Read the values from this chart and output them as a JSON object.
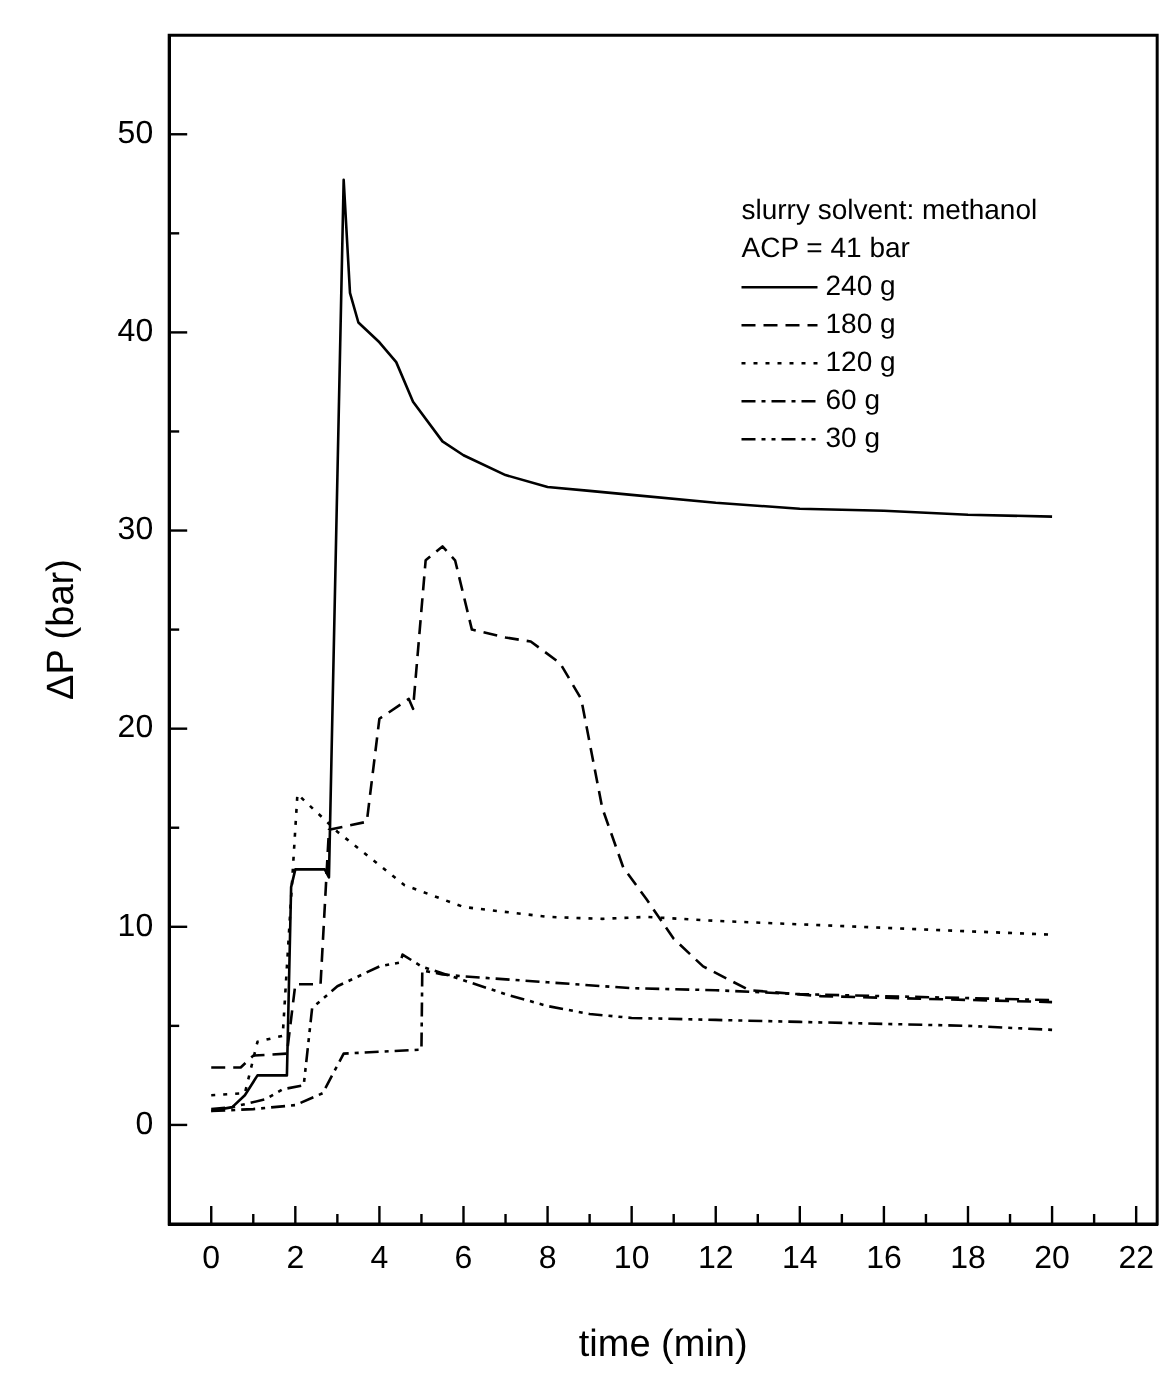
{
  "chart_data": {
    "type": "line",
    "xlabel": "time (min)",
    "ylabel": "ΔP (bar)",
    "xlim": [
      -1,
      22.5
    ],
    "ylim": [
      -5,
      55
    ],
    "xticks": [
      0,
      {
        "value": 1,
        "label": null
      },
      2,
      {
        "value": 3,
        "label": null
      },
      4,
      {
        "value": 5,
        "label": null
      },
      6,
      {
        "value": 7,
        "label": null
      },
      8,
      {
        "value": 9,
        "label": null
      },
      10,
      {
        "value": 11,
        "label": null
      },
      12,
      {
        "value": 13,
        "label": null
      },
      14,
      {
        "value": 15,
        "label": null
      },
      16,
      {
        "value": 17,
        "label": null
      },
      18,
      {
        "value": 19,
        "label": null
      },
      20,
      {
        "value": 21,
        "label": null
      },
      22
    ],
    "yticks": [
      0,
      {
        "value": 5,
        "label": null
      },
      10,
      {
        "value": 15,
        "label": null
      },
      20,
      {
        "value": 25,
        "label": null
      },
      30,
      {
        "value": 35,
        "label": null
      },
      40,
      {
        "value": 45,
        "label": null
      },
      50
    ],
    "grid": false,
    "legend": "top right",
    "marker": "none",
    "annotations": [
      "slurry solvent: methanol",
      "ACP = 41 bar"
    ],
    "series": [
      {
        "name": "240 g",
        "color": "#000000",
        "line_style": "solid",
        "x": [
          0,
          0.5,
          0.8,
          1.1,
          1.8,
          1.9,
          2,
          2.7,
          2.8,
          3.15,
          3.3,
          3.5,
          4,
          4.4,
          4.8,
          5.5,
          6,
          7,
          8,
          9,
          10,
          12,
          14,
          16,
          18,
          20
        ],
        "values": [
          0.7,
          0.9,
          1.5,
          2.5,
          2.5,
          12,
          12.9,
          12.9,
          12.5,
          47.7,
          42,
          40.5,
          39.5,
          38.5,
          36.5,
          34.5,
          33.8,
          32.8,
          32.2,
          32,
          31.8,
          31.4,
          31.1,
          31,
          30.8,
          30.7
        ]
      },
      {
        "name": "180 g",
        "color": "#000000",
        "line_style": "dashed",
        "x": [
          0,
          0.7,
          1,
          1.8,
          2,
          2.6,
          2.8,
          3.7,
          4,
          4.7,
          4.8,
          5.1,
          5.5,
          5.8,
          6.2,
          7,
          7.6,
          8.3,
          8.8,
          9.3,
          9.8,
          10.35,
          11,
          11.7,
          12.8,
          14.5,
          20
        ],
        "values": [
          2.9,
          2.9,
          3.5,
          3.6,
          7.1,
          7.1,
          14.9,
          15.3,
          20.5,
          21.5,
          21,
          28.5,
          29.2,
          28.5,
          25,
          24.6,
          24.4,
          23.3,
          21.5,
          16,
          13,
          11.4,
          9.4,
          8,
          6.8,
          6.5,
          6.2
        ]
      },
      {
        "name": "120 g",
        "color": "#000000",
        "line_style": "dotted",
        "x": [
          0,
          0.8,
          1.1,
          1.7,
          2.05,
          3,
          4.6,
          6,
          8,
          9.3,
          10.35,
          12,
          20
        ],
        "values": [
          1.5,
          1.6,
          4.2,
          4.5,
          16.7,
          14.8,
          12.1,
          11,
          10.5,
          10.4,
          10.5,
          10.3,
          9.6
        ]
      },
      {
        "name": "60 g",
        "color": "#000000",
        "line_style": "dashdot",
        "x": [
          0,
          1,
          2,
          2.65,
          3.15,
          5,
          5.02,
          5.5,
          6,
          8,
          10,
          12,
          14,
          20
        ],
        "values": [
          0.7,
          0.8,
          1,
          1.6,
          3.6,
          3.8,
          7.8,
          7.6,
          7.5,
          7.2,
          6.9,
          6.8,
          6.6,
          6.3
        ]
      },
      {
        "name": "30 g",
        "color": "#000000",
        "line_style": "dashdotdot",
        "x": [
          0,
          0.5,
          1.3,
          1.7,
          2.2,
          2.4,
          3,
          4,
          4.5,
          4.55,
          5,
          6,
          7,
          8,
          9,
          10,
          12,
          14,
          16,
          18,
          20
        ],
        "values": [
          0.8,
          0.9,
          1.3,
          1.8,
          2,
          5.9,
          7,
          8,
          8.2,
          8.6,
          8,
          7.3,
          6.6,
          6,
          5.6,
          5.4,
          5.3,
          5.2,
          5.1,
          5,
          4.8
        ]
      }
    ]
  }
}
